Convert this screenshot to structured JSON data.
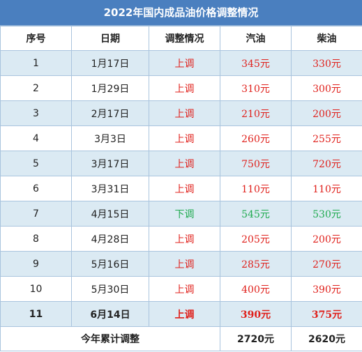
{
  "title": "2022年国内成品油价格调整情况",
  "headers": [
    "序号",
    "日期",
    "调整情况",
    "汽油",
    "柴油"
  ],
  "rows": [
    {
      "no": "1",
      "date": "1月17日",
      "status": "上调",
      "gas": "345元",
      "diesel": "330元",
      "type": "up"
    },
    {
      "no": "2",
      "date": "1月29日",
      "status": "上调",
      "gas": "310元",
      "diesel": "300元",
      "type": "up"
    },
    {
      "no": "3",
      "date": "2月17日",
      "status": "上调",
      "gas": "210元",
      "diesel": "200元",
      "type": "up"
    },
    {
      "no": "4",
      "date": "3月3日",
      "status": "上调",
      "gas": "260元",
      "diesel": "255元",
      "type": "up"
    },
    {
      "no": "5",
      "date": "3月17日",
      "status": "上调",
      "gas": "750元",
      "diesel": "720元",
      "type": "up"
    },
    {
      "no": "6",
      "date": "3月31日",
      "status": "上调",
      "gas": "110元",
      "diesel": "110元",
      "type": "up"
    },
    {
      "no": "7",
      "date": "4月15日",
      "status": "下调",
      "gas": "545元",
      "diesel": "530元",
      "type": "down"
    },
    {
      "no": "8",
      "date": "4月28日",
      "status": "上调",
      "gas": "205元",
      "diesel": "200元",
      "type": "up"
    },
    {
      "no": "9",
      "date": "5月16日",
      "status": "上调",
      "gas": "285元",
      "diesel": "270元",
      "type": "up"
    },
    {
      "no": "10",
      "date": "5月30日",
      "status": "上调",
      "gas": "400元",
      "diesel": "390元",
      "type": "up"
    },
    {
      "no": "11",
      "date": "6月14日",
      "status": "上调",
      "gas": "390元",
      "diesel": "375元",
      "type": "up"
    }
  ],
  "total": {
    "label": "今年累计调整",
    "gas": "2720元",
    "diesel": "2620元"
  },
  "colors": {
    "header_bg": "#4a7fbf",
    "stripe": "#dbeaf3",
    "up": "#e0201b",
    "down": "#1faa4f"
  }
}
